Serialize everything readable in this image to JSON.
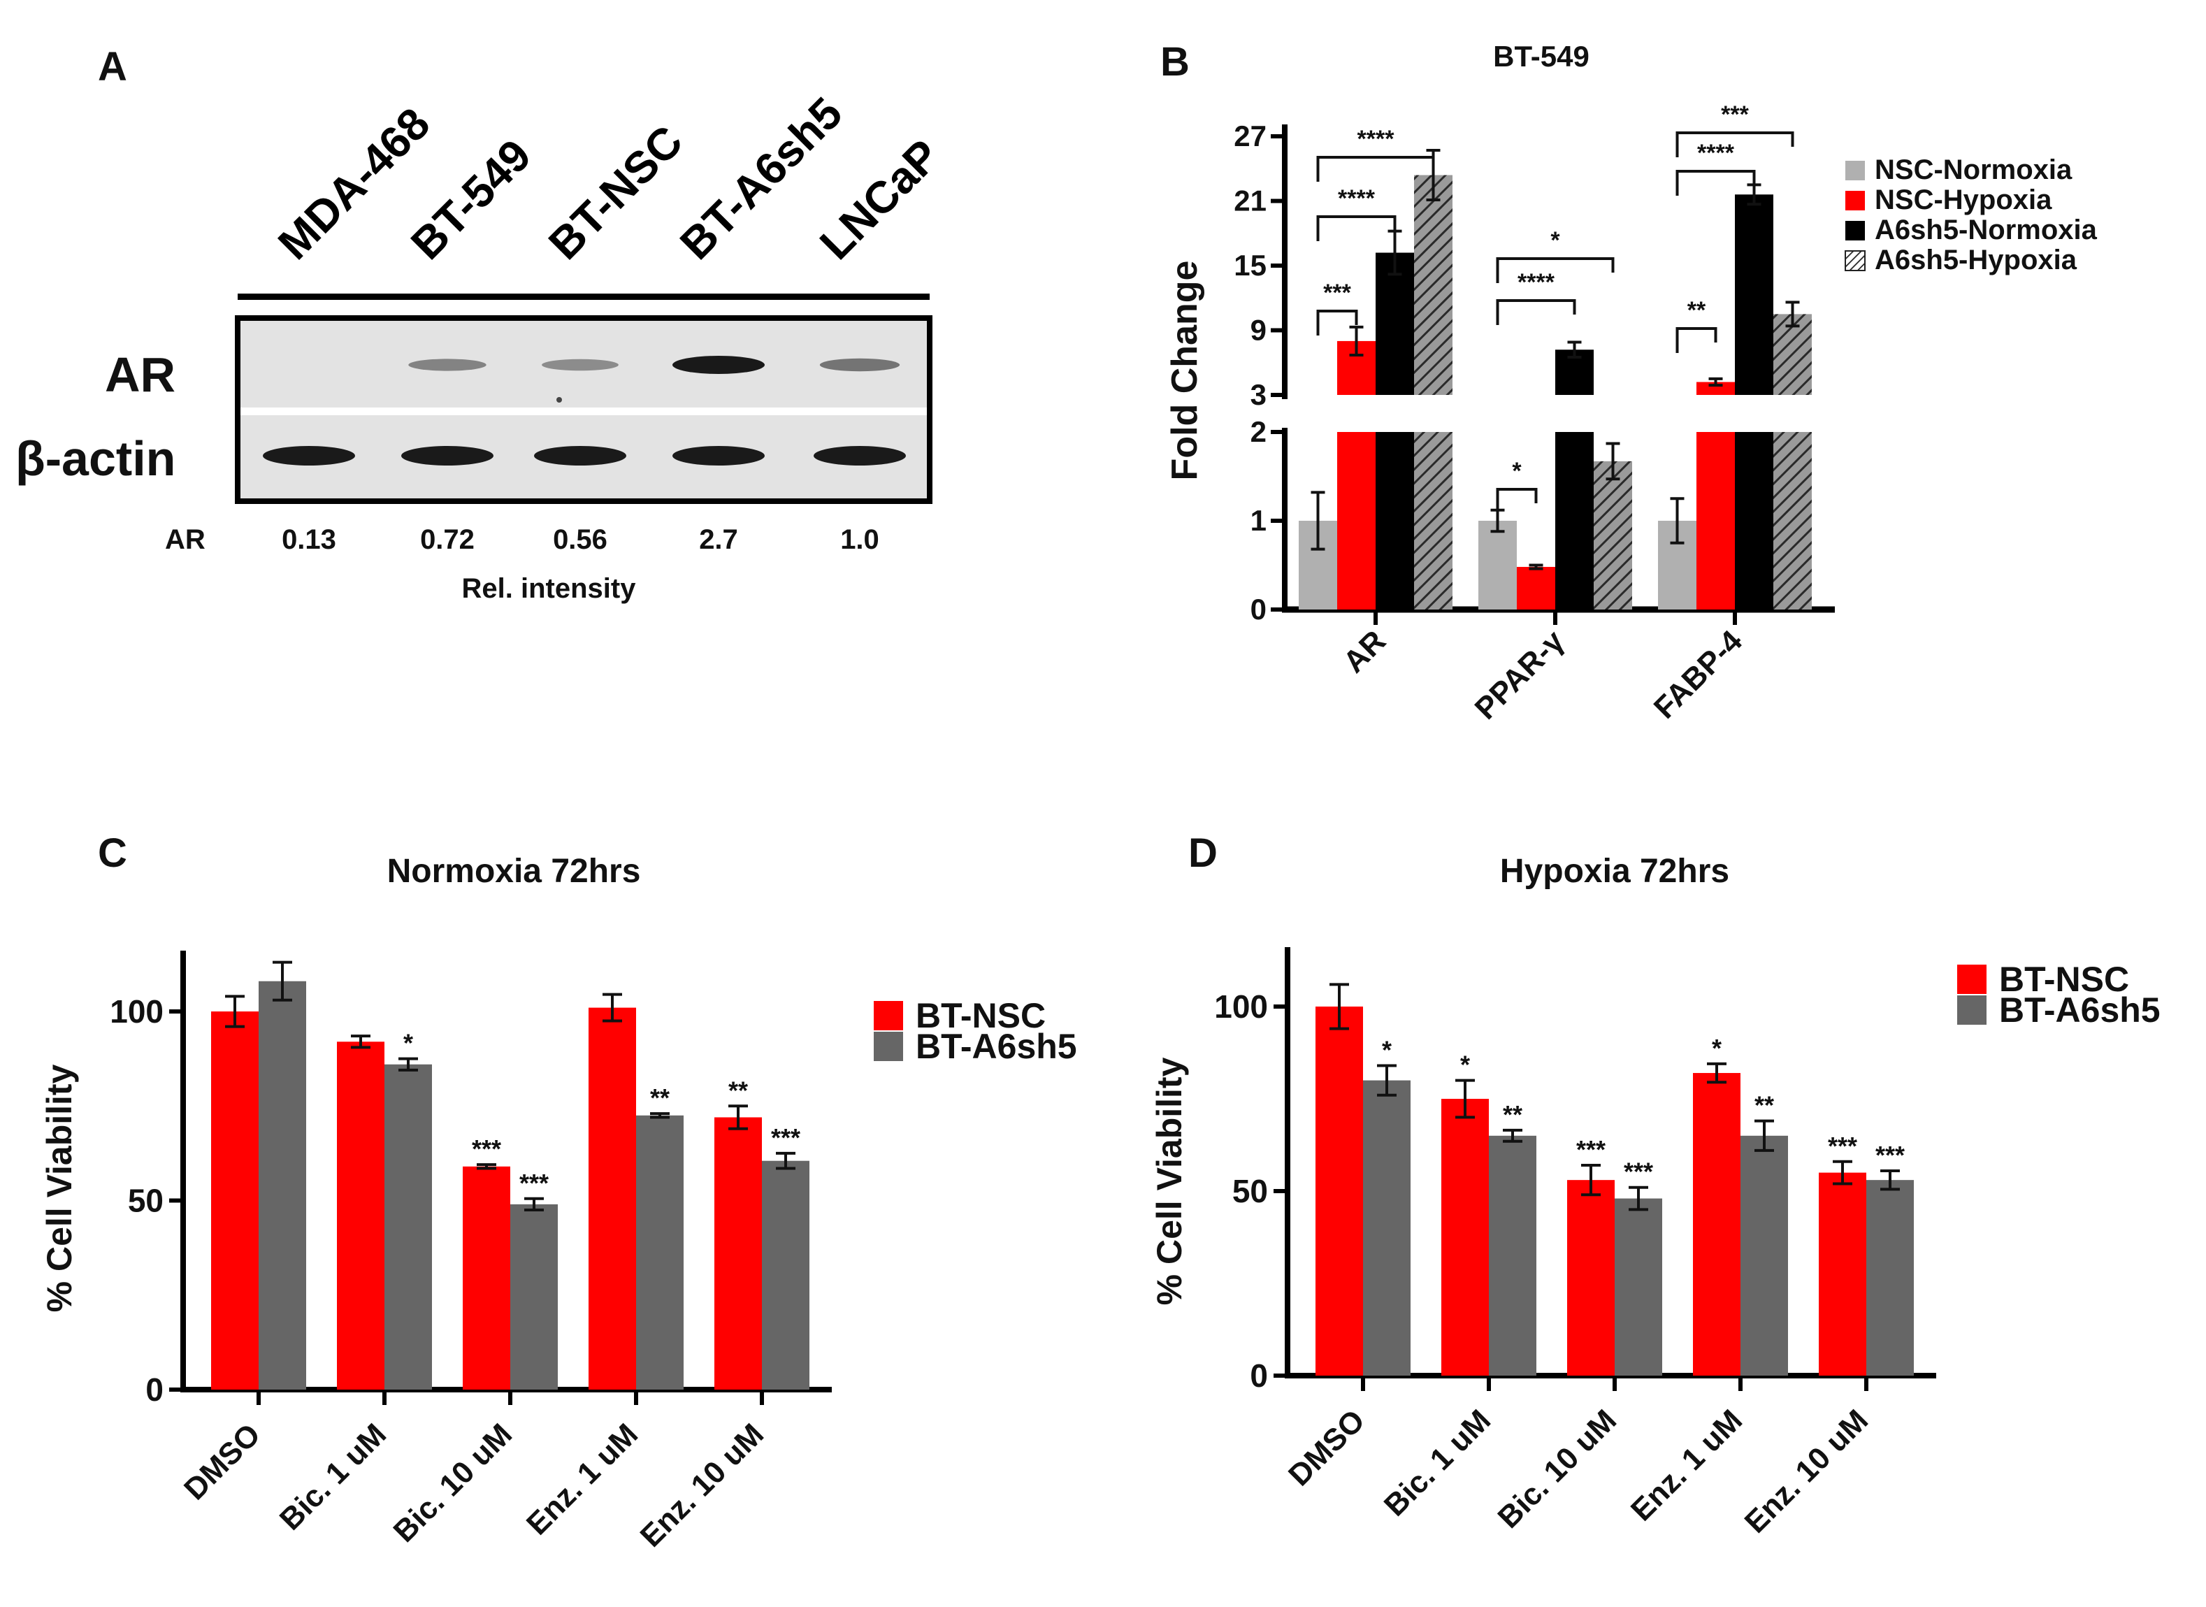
{
  "panel_letters": {
    "a": "A",
    "b": "B",
    "c": "C",
    "d": "D"
  },
  "panel_a": {
    "lanes": [
      "MDA-468",
      "BT-549",
      "BT-NSC",
      "BT-A6sh5",
      "LNCaP"
    ],
    "row_labels": {
      "ar": "AR",
      "actin": "β-actin"
    },
    "intensity_label": "AR",
    "intensity_values": [
      "0.13",
      "0.72",
      "0.56",
      "2.7",
      "1.0"
    ],
    "intensity_caption": "Rel. intensity",
    "colors": {
      "band": "#1a1a1a",
      "blot_bg": "#e6e6e6"
    }
  },
  "chart_data": [
    {
      "id": "B",
      "type": "bar",
      "title": "BT-549",
      "ylabel": "Fold Change",
      "categories": [
        "AR",
        "PPAR-γ",
        "FABP-4"
      ],
      "broken_axis": {
        "lower_range": [
          0,
          2
        ],
        "upper_range": [
          3,
          27
        ]
      },
      "lower_ticks": [
        0,
        1,
        2
      ],
      "upper_ticks": [
        3,
        9,
        15,
        21,
        27
      ],
      "series": [
        {
          "name": "NSC-Normoxia",
          "color": "#b0b0b0",
          "pattern": "solid",
          "values": [
            1.0,
            1.0,
            1.0
          ],
          "errors": [
            0.32,
            0.12,
            0.25
          ]
        },
        {
          "name": "NSC-Hypoxia",
          "color": "#ff0000",
          "pattern": "solid",
          "values": [
            8.0,
            0.48,
            4.2
          ],
          "errors": [
            1.3,
            0.02,
            0.3
          ]
        },
        {
          "name": "A6sh5-Normoxia",
          "color": "#000000",
          "pattern": "solid",
          "values": [
            16.2,
            7.2,
            21.6
          ],
          "errors": [
            2.0,
            0.7,
            0.9
          ]
        },
        {
          "name": "A6sh5-Hypoxia",
          "color": "#888888",
          "pattern": "hatched",
          "values": [
            23.4,
            1.67,
            10.5
          ],
          "errors": [
            2.3,
            0.2,
            1.1
          ]
        }
      ],
      "legend_position": "right",
      "significance": [
        {
          "category": 0,
          "from": 0,
          "to": 1,
          "label": "***"
        },
        {
          "category": 0,
          "from": 0,
          "to": 2,
          "label": "****"
        },
        {
          "category": 0,
          "from": 0,
          "to": 3,
          "label": "****"
        },
        {
          "category": 1,
          "from": 0,
          "to": 1,
          "label": "*"
        },
        {
          "category": 1,
          "from": 0,
          "to": 2,
          "label": "****"
        },
        {
          "category": 1,
          "from": 0,
          "to": 3,
          "label": "*"
        },
        {
          "category": 2,
          "from": 0,
          "to": 1,
          "label": "**"
        },
        {
          "category": 2,
          "from": 0,
          "to": 2,
          "label": "****"
        },
        {
          "category": 2,
          "from": 0,
          "to": 3,
          "label": "***"
        }
      ]
    },
    {
      "id": "C",
      "type": "bar",
      "title": "Normoxia 72hrs",
      "ylabel": "% Cell Viability",
      "categories": [
        "DMSO",
        "Bic. 1 uM",
        "Bic. 10 uM",
        "Enz. 1 uM",
        "Enz. 10 uM"
      ],
      "ylim": [
        0,
        115
      ],
      "yticks": [
        0,
        50,
        100
      ],
      "series": [
        {
          "name": "BT-NSC",
          "color": "#ff0000",
          "values": [
            100,
            92,
            59,
            101,
            72
          ],
          "errors": [
            4,
            1.5,
            0.5,
            3.5,
            3
          ],
          "stars": [
            "",
            "",
            "***",
            "",
            "**"
          ]
        },
        {
          "name": "BT-A6sh5",
          "color": "#666666",
          "values": [
            108,
            86,
            49,
            72.5,
            60.5
          ],
          "errors": [
            5,
            1.5,
            1.5,
            0.5,
            2
          ],
          "stars": [
            "",
            "*",
            "***",
            "**",
            "***"
          ]
        }
      ],
      "legend_position": "right"
    },
    {
      "id": "D",
      "type": "bar",
      "title": "Hypoxia 72hrs",
      "ylabel": "% Cell Viability",
      "categories": [
        "DMSO",
        "Bic. 1 uM",
        "Bic. 10 uM",
        "Enz. 1 uM",
        "Enz. 10 uM"
      ],
      "ylim": [
        0,
        115
      ],
      "yticks": [
        0,
        50,
        100
      ],
      "series": [
        {
          "name": "BT-NSC",
          "color": "#ff0000",
          "values": [
            100,
            75,
            53,
            82,
            55
          ],
          "errors": [
            6,
            5,
            4,
            2.5,
            3
          ],
          "stars": [
            "",
            "*",
            "***",
            "*",
            "***"
          ]
        },
        {
          "name": "BT-A6sh5",
          "color": "#666666",
          "values": [
            80,
            65,
            48,
            65,
            53
          ],
          "errors": [
            4,
            1.5,
            3,
            4,
            2.5
          ],
          "stars": [
            "*",
            "**",
            "***",
            "**",
            "***"
          ]
        }
      ],
      "legend_position": "right"
    }
  ]
}
